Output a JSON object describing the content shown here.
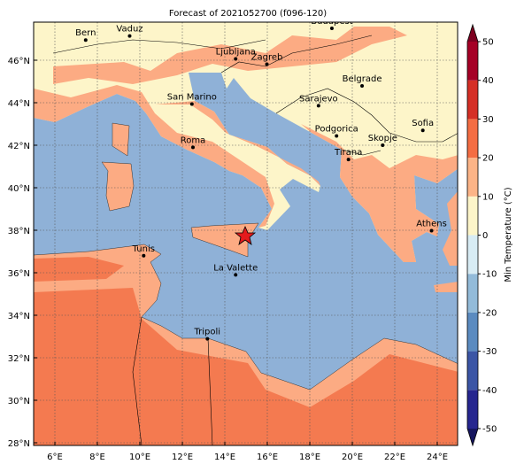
{
  "title": "Forecast of 2021052700 (f096-120)",
  "map": {
    "lon_ticks": [
      {
        "value": 6,
        "label": "6°E"
      },
      {
        "value": 8,
        "label": "8°E"
      },
      {
        "value": 10,
        "label": "10°E"
      },
      {
        "value": 12,
        "label": "12°E"
      },
      {
        "value": 14,
        "label": "14°E"
      },
      {
        "value": 16,
        "label": "16°E"
      },
      {
        "value": 18,
        "label": "18°E"
      },
      {
        "value": 20,
        "label": "20°E"
      },
      {
        "value": 22,
        "label": "22°E"
      },
      {
        "value": 24,
        "label": "24°E"
      }
    ],
    "lat_ticks": [
      {
        "value": 28,
        "label": "28°N"
      },
      {
        "value": 30,
        "label": "30°N"
      },
      {
        "value": 32,
        "label": "32°N"
      },
      {
        "value": 34,
        "label": "34°N"
      },
      {
        "value": 36,
        "label": "36°N"
      },
      {
        "value": 38,
        "label": "38°N"
      },
      {
        "value": 40,
        "label": "40°N"
      },
      {
        "value": 42,
        "label": "42°N"
      },
      {
        "value": 44,
        "label": "44°N"
      },
      {
        "value": 46,
        "label": "46°N"
      }
    ],
    "cities": [
      "Bern",
      "Vaduz",
      "Budapest",
      "Ljubljana",
      "Zagreb",
      "Belgrade",
      "San Marino",
      "Sarajevo",
      "Sofia",
      "Roma",
      "Podgorica",
      "Skopje",
      "Tirana",
      "Athens",
      "Tunis",
      "La Valette",
      "Tripoli"
    ]
  },
  "colorbar": {
    "label": "Min Temperature (°C)",
    "ticks": [
      -50,
      -40,
      -30,
      -20,
      -10,
      0,
      10,
      20,
      30,
      40,
      50
    ],
    "colors": [
      "#26268f",
      "#3b55a5",
      "#5b8bc0",
      "#93bbd9",
      "#d8ecf4",
      "#fdf5c9",
      "#fcb487",
      "#f46d43",
      "#d52f26",
      "#a50026"
    ],
    "under_color": "#15155e",
    "over_color": "#7d0020"
  }
}
